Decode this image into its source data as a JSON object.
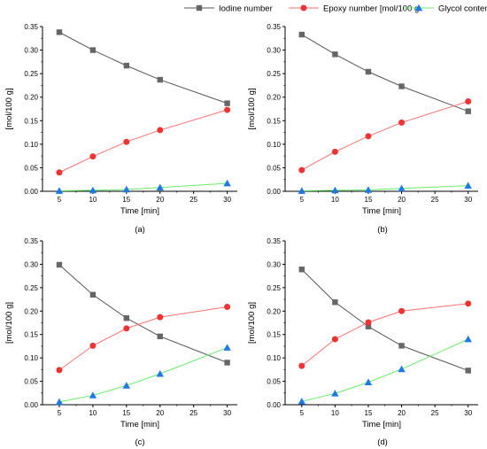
{
  "legend": [
    {
      "name": "Iodine number",
      "color": "#555555",
      "marker": "square"
    },
    {
      "name": "Epoxy number [mol/100 g",
      "color": "#ff3333",
      "marker": "circle"
    },
    {
      "name": "Glycol content",
      "color": "#1e78e6",
      "marker": "triangle"
    }
  ],
  "series_styles": {
    "line_colors": [
      "#555555",
      "#ff7070",
      "#66ee66"
    ],
    "marker_colors": [
      "#666666",
      "#ee3333",
      "#1e78e6"
    ]
  },
  "chart_data": [
    {
      "type": "line",
      "label": "(a)",
      "x": [
        5,
        10,
        15,
        20,
        30
      ],
      "xlabel": "Time [min]",
      "ylabel": "[mol/100 g]",
      "xlim": [
        2.5,
        31.5
      ],
      "ylim": [
        0,
        0.35
      ],
      "xticks": [
        5,
        10,
        15,
        20,
        25,
        30
      ],
      "yticks": [
        "0.00",
        "0.05",
        "0.10",
        "0.15",
        "0.20",
        "0.25",
        "0.30",
        "0.35"
      ],
      "grid": false,
      "series": [
        {
          "name": "Iodine number",
          "values": [
            0.338,
            0.3,
            0.267,
            0.237,
            0.187
          ]
        },
        {
          "name": "Epoxy number [mol/100 g",
          "values": [
            0.04,
            0.074,
            0.105,
            0.13,
            0.173
          ]
        },
        {
          "name": "Glycol content",
          "values": [
            0.001,
            0.002,
            0.004,
            0.008,
            0.017
          ]
        }
      ]
    },
    {
      "type": "line",
      "label": "(b)",
      "x": [
        5,
        10,
        15,
        20,
        30
      ],
      "xlabel": "Time [min]",
      "ylabel": "[mol/100 g]",
      "xlim": [
        2.5,
        31.5
      ],
      "ylim": [
        0,
        0.35
      ],
      "xticks": [
        5,
        10,
        15,
        20,
        25,
        30
      ],
      "yticks": [
        "0.00",
        "0.05",
        "0.10",
        "0.15",
        "0.20",
        "0.25",
        "0.30",
        "0.35"
      ],
      "grid": false,
      "series": [
        {
          "name": "Iodine number",
          "values": [
            0.333,
            0.291,
            0.254,
            0.223,
            0.17
          ]
        },
        {
          "name": "Epoxy number [mol/100 g",
          "values": [
            0.045,
            0.084,
            0.117,
            0.146,
            0.191
          ]
        },
        {
          "name": "Glycol content",
          "values": [
            0.001,
            0.002,
            0.003,
            0.006,
            0.012
          ]
        }
      ]
    },
    {
      "type": "line",
      "label": "(c)",
      "x": [
        5,
        10,
        15,
        20,
        30
      ],
      "xlabel": "Time [min]",
      "ylabel": "[mol/100 g]",
      "xlim": [
        2.5,
        31.5
      ],
      "ylim": [
        0,
        0.35
      ],
      "xticks": [
        5,
        10,
        15,
        20,
        25,
        30
      ],
      "yticks": [
        "0.00",
        "0.05",
        "0.10",
        "0.15",
        "0.20",
        "0.25",
        "0.30",
        "0.35"
      ],
      "grid": false,
      "series": [
        {
          "name": "Iodine number",
          "values": [
            0.299,
            0.235,
            0.185,
            0.146,
            0.09
          ]
        },
        {
          "name": "Epoxy number [mol/100 g",
          "values": [
            0.074,
            0.126,
            0.163,
            0.187,
            0.209
          ]
        },
        {
          "name": "Glycol content",
          "values": [
            0.006,
            0.02,
            0.041,
            0.066,
            0.122
          ]
        }
      ]
    },
    {
      "type": "line",
      "label": "(d)",
      "x": [
        5,
        10,
        15,
        20,
        30
      ],
      "xlabel": "Time [min]",
      "ylabel": "[mol/100 g]",
      "xlim": [
        2.5,
        31.5
      ],
      "ylim": [
        0,
        0.35
      ],
      "xticks": [
        5,
        10,
        15,
        20,
        25,
        30
      ],
      "yticks": [
        "0.00",
        "0.05",
        "0.10",
        "0.15",
        "0.20",
        "0.25",
        "0.30",
        "0.35"
      ],
      "grid": false,
      "series": [
        {
          "name": "Iodine number",
          "values": [
            0.289,
            0.219,
            0.167,
            0.126,
            0.073
          ]
        },
        {
          "name": "Epoxy number [mol/100 g",
          "values": [
            0.083,
            0.14,
            0.176,
            0.2,
            0.216
          ]
        },
        {
          "name": "Glycol content",
          "values": [
            0.007,
            0.024,
            0.048,
            0.076,
            0.14
          ]
        }
      ]
    }
  ]
}
